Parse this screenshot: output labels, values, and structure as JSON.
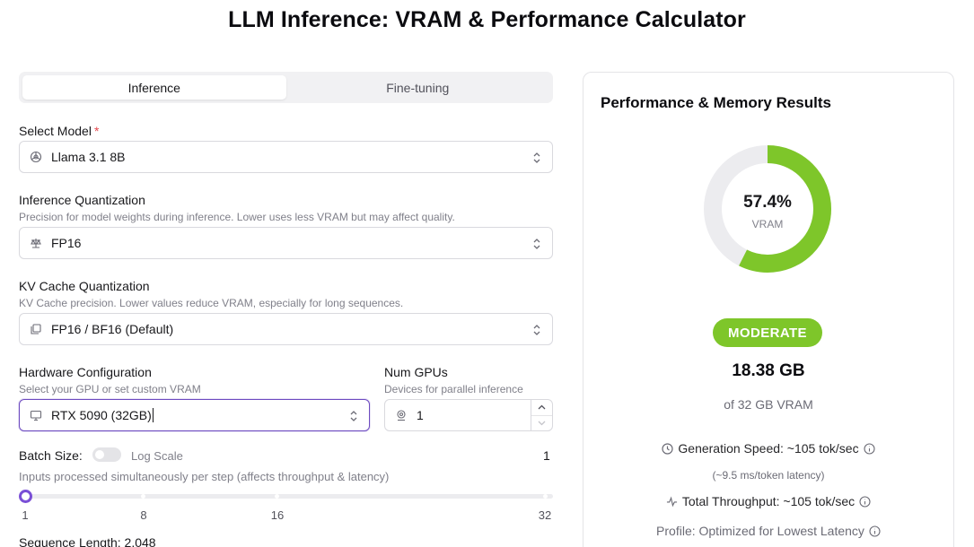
{
  "page": {
    "title": "LLM Inference: VRAM & Performance Calculator"
  },
  "tabs": [
    {
      "label": "Inference",
      "active": true
    },
    {
      "label": "Fine-tuning",
      "active": false
    }
  ],
  "model": {
    "label": "Select Model",
    "required_mark": "*",
    "value": "Llama 3.1 8B",
    "icon": "openai-logo-icon"
  },
  "quantization": {
    "label": "Inference Quantization",
    "hint": "Precision for model weights during inference. Lower uses less VRAM but may affect quality.",
    "value": "FP16",
    "icon": "scale-icon"
  },
  "kv_cache": {
    "label": "KV Cache Quantization",
    "hint": "KV Cache precision. Lower values reduce VRAM, especially for long sequences.",
    "value": "FP16 / BF16 (Default)",
    "icon": "layers-icon"
  },
  "hardware": {
    "label": "Hardware Configuration",
    "hint": "Select your GPU or set custom VRAM",
    "value": "RTX 5090 (32GB)",
    "icon": "monitor-icon"
  },
  "gpus": {
    "label": "Num GPUs",
    "hint": "Devices for parallel inference",
    "value": "1",
    "icon": "gpu-icon"
  },
  "batch": {
    "label": "Batch Size:",
    "log_scale_label": "Log Scale",
    "log_scale_on": false,
    "value": "1",
    "hint": "Inputs processed simultaneously per step (affects throughput & latency)",
    "ticks": [
      "1",
      "8",
      "16",
      "32"
    ],
    "slider_fraction": 0
  },
  "sequence": {
    "label": "Sequence Length: 2,048"
  },
  "results": {
    "title": "Performance & Memory Results",
    "percent": "57.4%",
    "percent_value": 57.4,
    "percent_label": "VRAM",
    "status": "MODERATE",
    "used": "18.38 GB",
    "total": "of 32 GB VRAM",
    "gen_speed": "Generation Speed: ~105 tok/sec",
    "latency": "(~9.5 ms/token latency)",
    "throughput": "Total Throughput: ~105 tok/sec",
    "profile": "Profile: Optimized for Lowest Latency"
  },
  "colors": {
    "accent": "#7a4fd6",
    "ok": "#7ec62a",
    "track": "#ececef"
  }
}
